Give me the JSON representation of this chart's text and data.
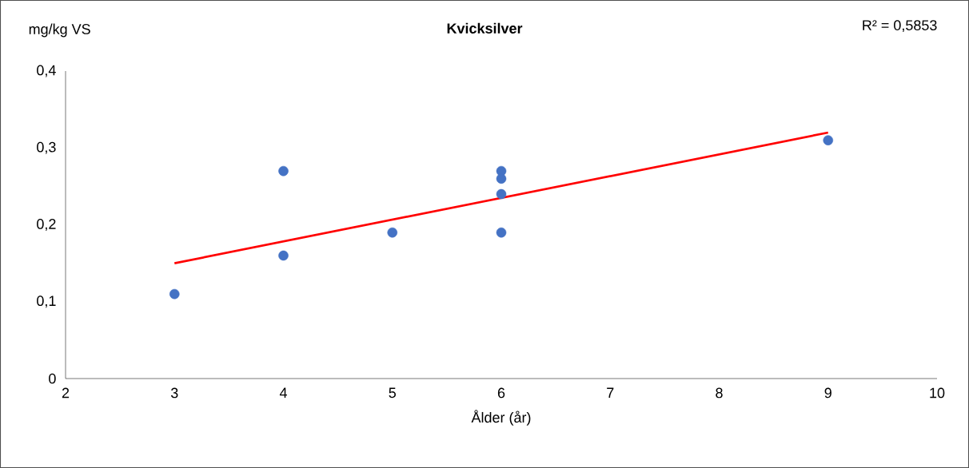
{
  "chart_data": {
    "type": "scatter",
    "title": "Kvicksilver",
    "ylabel": "mg/kg VS",
    "xlabel": "Ålder (år)",
    "annotations": [
      "R² = 0,5853"
    ],
    "series": [
      {
        "color": "#4472c4",
        "marker": "circle",
        "x": [
          3,
          4,
          4,
          5,
          6,
          6,
          6,
          6,
          9
        ],
        "values": [
          0.11,
          0.27,
          0.16,
          0.19,
          0.27,
          0.26,
          0.24,
          0.19,
          0.31
        ]
      },
      {
        "type": "line",
        "color": "#ff0000",
        "marker": "none",
        "line_style": "solid",
        "x": [
          3,
          9
        ],
        "values": [
          0.15,
          0.32
        ]
      }
    ],
    "xlim": [
      2,
      10
    ],
    "xticks": [
      2,
      3,
      4,
      5,
      6,
      7,
      8,
      9,
      10
    ],
    "ylim": [
      0,
      0.4
    ],
    "yticks": [
      {
        "value": 0,
        "label": "0"
      },
      {
        "value": 0.1,
        "label": "0,1"
      },
      {
        "value": 0.2,
        "label": "0,2"
      },
      {
        "value": 0.3,
        "label": "0,3"
      },
      {
        "value": 0.4,
        "label": "0,4"
      }
    ],
    "grid": false
  }
}
